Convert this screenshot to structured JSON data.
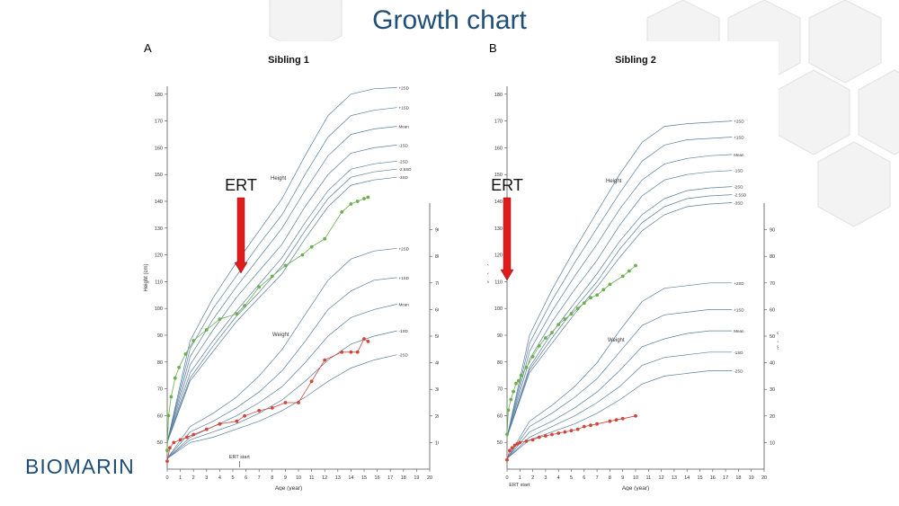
{
  "slide": {
    "title": "Growth chart",
    "logo": "BIOMARIN",
    "logo_mark": "I"
  },
  "colors": {
    "title": "#1f4e79",
    "height_points": "#6ab04c",
    "weight_points": "#d0463b",
    "reference_lines": "#5a7fa0",
    "ert_arrow": "#e01b1b"
  },
  "chart_data": [
    {
      "type": "line",
      "panel": "A",
      "title": "Sibling 1",
      "annotation": "ERT",
      "ert_start_label": "ERT start",
      "ert_start_age": 5.5,
      "xlabel": "Age (year)",
      "ylabel_left": "Height (cm)",
      "ylabel_right": "Weight (kg)",
      "xlim": [
        0,
        20
      ],
      "ylim_height": [
        40,
        185
      ],
      "ylim_weight": [
        0,
        100
      ],
      "x_ticks": [
        "0",
        "1",
        "2",
        "3",
        "4",
        "5",
        "6",
        "7",
        "8",
        "9",
        "10",
        "11",
        "12",
        "13",
        "14",
        "15",
        "16",
        "17",
        "18",
        "19",
        "20"
      ],
      "height_ticks": [
        "50",
        "60",
        "70",
        "80",
        "90",
        "100",
        "110",
        "120",
        "130",
        "140",
        "150",
        "160",
        "170",
        "180"
      ],
      "weight_ticks": [
        "10",
        "20",
        "30",
        "40",
        "50",
        "60",
        "70",
        "80",
        "90"
      ],
      "height_label": "Height",
      "weight_label": "Weight",
      "height_reference": [
        {
          "label": "+2SD",
          "values": [
            50,
            88,
            104,
            117,
            129,
            141,
            157,
            172,
            180,
            182,
            182.5
          ]
        },
        {
          "label": "+1SD",
          "values": [
            50,
            85,
            100,
            112,
            124,
            135,
            150,
            164,
            172,
            174,
            175
          ]
        },
        {
          "label": "Mean",
          "values": [
            50,
            82,
            96,
            108,
            119,
            130,
            144,
            157,
            165,
            167,
            168
          ]
        },
        {
          "label": "-1SD",
          "values": [
            50,
            79,
            92,
            104,
            114,
            124,
            138,
            150,
            158,
            160,
            161
          ]
        },
        {
          "label": "-2SD",
          "values": [
            50,
            76,
            88,
            99,
            109,
            119,
            132,
            144,
            152,
            154,
            155
          ]
        },
        {
          "label": "-2.5SD",
          "values": [
            50,
            74,
            86,
            97,
            106,
            116,
            129,
            141,
            149,
            151,
            152
          ]
        },
        {
          "label": "-3SD",
          "values": [
            50,
            73,
            84,
            95,
            104,
            113,
            126,
            138,
            146,
            148,
            149
          ]
        }
      ],
      "weight_reference": [
        {
          "label": "+2SD",
          "values": [
            4,
            16,
            21,
            27,
            35,
            45,
            58,
            71,
            79,
            82,
            83
          ]
        },
        {
          "label": "+1SD",
          "values": [
            4,
            14,
            18,
            23,
            29,
            37,
            48,
            60,
            67,
            71,
            72
          ]
        },
        {
          "label": "Mean",
          "values": [
            4,
            12,
            16,
            20,
            25,
            31,
            40,
            50,
            57,
            60,
            62
          ]
        },
        {
          "label": "-1SD",
          "values": [
            4,
            11,
            14,
            17,
            21,
            26,
            33,
            41,
            47,
            50,
            52
          ]
        },
        {
          "label": "-2SD",
          "values": [
            4,
            10,
            12,
            15,
            18,
            22,
            27,
            33,
            38,
            41,
            43
          ]
        }
      ],
      "height_points": {
        "x": [
          0,
          0.1,
          0.3,
          0.6,
          0.9,
          1.4,
          2,
          3,
          4,
          5.3,
          5.9,
          7,
          8,
          9,
          10.3,
          11,
          12,
          13.3,
          14,
          14.5,
          15,
          15.3
        ],
        "y": [
          47,
          60,
          67,
          74,
          78,
          83,
          88,
          92,
          96,
          98,
          101,
          108,
          112,
          116,
          120,
          123,
          126,
          136,
          139,
          140,
          141,
          141.5
        ]
      },
      "weight_points": {
        "x": [
          0,
          0.2,
          0.5,
          1,
          1.5,
          2,
          3,
          4,
          5.3,
          5.9,
          7,
          8,
          9,
          10,
          11,
          12,
          13.3,
          14,
          14.5,
          15,
          15.3
        ],
        "y": [
          3,
          8,
          10,
          11,
          12,
          13,
          15,
          17,
          18,
          20,
          22,
          23,
          25,
          25,
          33,
          41,
          44,
          44,
          44,
          49,
          48
        ]
      }
    },
    {
      "type": "line",
      "panel": "B",
      "title": "Sibling 2",
      "annotation": "ERT",
      "ert_start_label": "ERT start",
      "ert_start_age": 0.3,
      "xlabel": "Age (year)",
      "ylabel_left": "Height (cm)",
      "ylabel_right": "Weight (kg)",
      "xlim": [
        0,
        20
      ],
      "ylim_height": [
        40,
        185
      ],
      "ylim_weight": [
        0,
        100
      ],
      "x_ticks": [
        "0",
        "1",
        "2",
        "3",
        "4",
        "5",
        "6",
        "7",
        "8",
        "9",
        "10",
        "11",
        "12",
        "13",
        "14",
        "15",
        "16",
        "17",
        "18",
        "19",
        "20"
      ],
      "height_ticks": [
        "50",
        "60",
        "70",
        "80",
        "90",
        "100",
        "110",
        "120",
        "130",
        "140",
        "150",
        "160",
        "170",
        "180"
      ],
      "weight_ticks": [
        "10",
        "20",
        "30",
        "40",
        "50",
        "60",
        "70",
        "80",
        "90"
      ],
      "height_label": "Height",
      "weight_label": "Weight",
      "height_reference": [
        {
          "label": "+2SD",
          "values": [
            52,
            90,
            107,
            122,
            136,
            150,
            162,
            168,
            169,
            169.5,
            170
          ]
        },
        {
          "label": "+1SD",
          "values": [
            52,
            87,
            103,
            117,
            130,
            143,
            155,
            161,
            163,
            163.5,
            164
          ]
        },
        {
          "label": "Mean",
          "values": [
            52,
            84,
            99,
            112,
            124,
            137,
            148,
            154,
            156,
            157,
            157.5
          ]
        },
        {
          "label": "-1SD",
          "values": [
            52,
            81,
            95,
            107,
            118,
            131,
            142,
            148,
            150,
            151,
            151.5
          ]
        },
        {
          "label": "-2SD",
          "values": [
            52,
            78,
            91,
            102,
            113,
            125,
            135,
            141,
            144,
            145,
            145.5
          ]
        },
        {
          "label": "-2.5SD",
          "values": [
            52,
            77,
            89,
            100,
            110,
            122,
            132,
            138,
            141,
            142,
            142.5
          ]
        },
        {
          "label": "-3SD",
          "values": [
            52,
            76,
            87,
            98,
            108,
            119,
            129,
            135,
            138,
            139,
            139.5
          ]
        }
      ],
      "weight_reference": [
        {
          "label": "+2SD",
          "values": [
            4,
            18,
            24,
            31,
            40,
            52,
            63,
            68,
            69,
            70,
            70
          ]
        },
        {
          "label": "+1SD",
          "values": [
            4,
            16,
            21,
            27,
            34,
            44,
            54,
            58,
            59,
            60,
            60
          ]
        },
        {
          "label": "Mean",
          "values": [
            4,
            14,
            18,
            23,
            29,
            37,
            46,
            49,
            51,
            52,
            52
          ]
        },
        {
          "label": "-1SD",
          "values": [
            4,
            12,
            16,
            20,
            25,
            31,
            39,
            42,
            43,
            44,
            44
          ]
        },
        {
          "label": "-2SD",
          "values": [
            4,
            11,
            14,
            17,
            21,
            26,
            32,
            35,
            36,
            37,
            37
          ]
        }
      ],
      "height_points": {
        "x": [
          0,
          0.1,
          0.3,
          0.5,
          0.7,
          0.9,
          1.1,
          1.5,
          2,
          2.5,
          3,
          3.5,
          4,
          4.5,
          5,
          5.5,
          6,
          6.5,
          7,
          7.5,
          8,
          9,
          9.5,
          10
        ],
        "y": [
          53,
          62,
          66,
          69,
          72,
          73,
          75,
          78,
          82,
          86,
          89,
          91,
          94,
          96,
          98,
          100,
          102,
          104,
          105,
          107,
          109,
          112,
          114,
          116
        ]
      },
      "weight_points": {
        "x": [
          0,
          0.2,
          0.4,
          0.6,
          0.8,
          1,
          1.5,
          2,
          2.5,
          3,
          3.5,
          4,
          4.5,
          5,
          5.5,
          6,
          6.5,
          7,
          8,
          8.5,
          9,
          10
        ],
        "y": [
          3.5,
          7,
          8,
          9,
          9.5,
          10,
          10.5,
          11,
          12,
          12.5,
          13,
          13.5,
          14,
          14.5,
          15,
          16,
          16.5,
          17,
          18,
          18.5,
          19,
          20
        ]
      }
    }
  ]
}
